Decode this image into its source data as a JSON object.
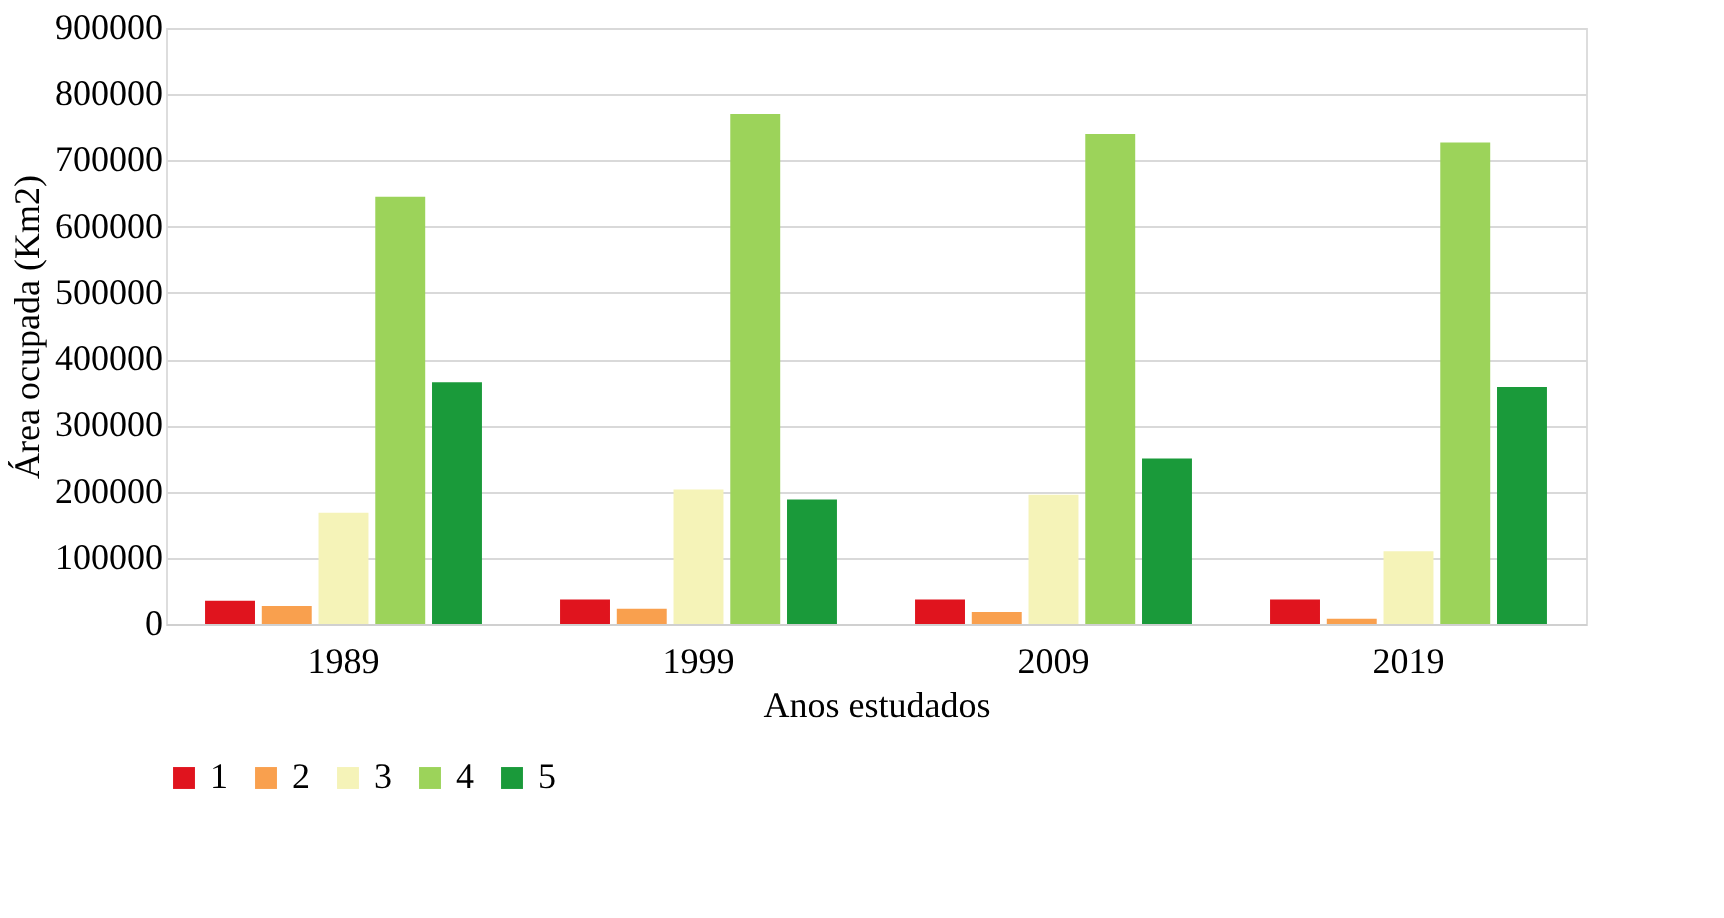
{
  "chart_data": {
    "type": "bar",
    "xlabel": "Anos estudados",
    "ylabel": "Área ocupada (Km2)",
    "categories": [
      "1989",
      "1999",
      "2009",
      "2019"
    ],
    "series": [
      {
        "name": "1",
        "color": "#e0141e",
        "values": [
          35000,
          37000,
          37000,
          37000
        ]
      },
      {
        "name": "2",
        "color": "#f9a04e",
        "values": [
          27000,
          23000,
          18000,
          8000
        ]
      },
      {
        "name": "3",
        "color": "#f5f3b8",
        "values": [
          168000,
          203000,
          195000,
          110000
        ]
      },
      {
        "name": "4",
        "color": "#9cd35a",
        "values": [
          645000,
          770000,
          740000,
          727000
        ]
      },
      {
        "name": "5",
        "color": "#1a9a3a",
        "values": [
          365000,
          188000,
          250000,
          358000
        ]
      }
    ],
    "ylim": [
      0,
      900000
    ],
    "yticks": [
      0,
      100000,
      200000,
      300000,
      400000,
      500000,
      600000,
      700000,
      800000,
      900000
    ],
    "grid": "y",
    "legend": "bottom"
  }
}
